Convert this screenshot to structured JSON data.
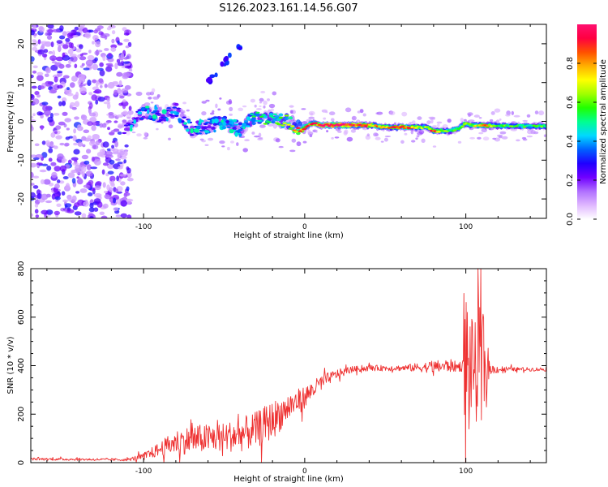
{
  "title": "S126.2023.161.14.56.G07",
  "chart_data": [
    {
      "type": "heatmap",
      "name": "spectrogram",
      "xlabel": "Height of straight line (km)",
      "ylabel": "Frequency (Hz)",
      "xlim": [
        -170,
        150
      ],
      "ylim": [
        -25,
        25
      ],
      "xticks": [
        -100,
        0,
        100
      ],
      "yticks": [
        -20,
        -10,
        0,
        10,
        20
      ],
      "colorbar": {
        "label": "Normalized spectral amplitude",
        "range": [
          0,
          1
        ],
        "ticks": [
          0.0,
          0.2,
          0.4,
          0.6,
          0.8
        ],
        "tick_labels": [
          "0.0",
          "0.2",
          "0.4",
          "0.6",
          "0.8"
        ],
        "colors": [
          "#ffffff",
          "#e0b8ff",
          "#b070ff",
          "#7000ff",
          "#2000ff",
          "#0060ff",
          "#00d8ff",
          "#00ff90",
          "#20ff00",
          "#a0ff00",
          "#ffff00",
          "#ffb000",
          "#ff5000",
          "#ff0040",
          "#ff1070"
        ]
      },
      "ridge": {
        "x": [
          -110,
          -100,
          -90,
          -80,
          -70,
          -60,
          -50,
          -40,
          -30,
          -20,
          -10,
          -5,
          0,
          5,
          10,
          20,
          30,
          40,
          50,
          60,
          70,
          75,
          80,
          85,
          90,
          95,
          100,
          103,
          106,
          110,
          120,
          130,
          140,
          150
        ],
        "freq": [
          -1.5,
          2.5,
          1.5,
          3,
          -2,
          -1,
          0,
          -2,
          1.5,
          0.5,
          0,
          -1.5,
          -1.5,
          -0.5,
          -1,
          -1,
          -1,
          -1,
          -1.5,
          -1.5,
          -1.5,
          -1.5,
          -2.5,
          -2.5,
          -2.5,
          -2,
          -0.5,
          -1,
          -1,
          -1,
          -1.2,
          -1.2,
          -1.2,
          -1.2
        ],
        "amplitude": [
          0.25,
          0.32,
          0.3,
          0.28,
          0.3,
          0.32,
          0.38,
          0.42,
          0.5,
          0.55,
          0.65,
          0.78,
          0.85,
          0.8,
          0.95,
          1.0,
          0.95,
          0.8,
          0.72,
          0.9,
          0.7,
          0.6,
          0.88,
          0.65,
          0.55,
          0.6,
          0.7,
          0.65,
          0.62,
          0.86,
          0.55,
          0.55,
          0.55,
          0.55
        ]
      },
      "artifact_streak": {
        "x": [
          -60,
          -50,
          -40
        ],
        "freq": [
          10,
          15,
          19
        ],
        "amplitude": [
          0.35,
          0.35,
          0.3
        ]
      }
    },
    {
      "type": "line",
      "name": "snr",
      "xlabel": "Height of straight line (km)",
      "ylabel": "SNR (10 * v/v)",
      "xlim": [
        -170,
        150
      ],
      "ylim": [
        0,
        800
      ],
      "xticks": [
        -100,
        0,
        100
      ],
      "yticks": [
        0,
        200,
        400,
        600,
        800
      ],
      "color": "#ee3030",
      "envelope": {
        "x": [
          -170,
          -110,
          -100,
          -90,
          -80,
          -70,
          -60,
          -50,
          -40,
          -30,
          -20,
          -10,
          0,
          10,
          20,
          30,
          40,
          60,
          80,
          90,
          95,
          98,
          100,
          102,
          105,
          108,
          110,
          112,
          115,
          130,
          150
        ],
        "mean": [
          15,
          12,
          25,
          55,
          85,
          95,
          100,
          105,
          115,
          135,
          175,
          230,
          270,
          330,
          365,
          385,
          390,
          390,
          395,
          400,
          395,
          400,
          400,
          395,
          390,
          385,
          390,
          385,
          385,
          385,
          385
        ],
        "noise": [
          5,
          5,
          15,
          30,
          50,
          60,
          60,
          60,
          70,
          75,
          80,
          60,
          45,
          30,
          20,
          12,
          12,
          12,
          25,
          28,
          20,
          25,
          350,
          300,
          150,
          300,
          330,
          120,
          20,
          8,
          8
        ]
      }
    }
  ]
}
